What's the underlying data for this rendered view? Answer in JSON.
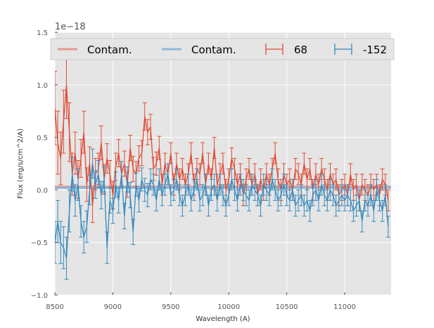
{
  "chart_data": {
    "type": "line",
    "xlabel": "Wavelength (A)",
    "ylabel": "Flux (erg/s/cm^2/A)",
    "y_offset_label": "1e−18",
    "xlim": [
      8500,
      11400
    ],
    "ylim": [
      -1.0,
      1.5
    ],
    "xticks": [
      8500,
      9000,
      9500,
      10000,
      10500,
      11000
    ],
    "xtick_labels": [
      "8500",
      "9000",
      "9500",
      "10000",
      "10500",
      "11000"
    ],
    "yticks": [
      -1.0,
      -0.5,
      0.0,
      0.5,
      1.0,
      1.5
    ],
    "ytick_labels": [
      "−1.0",
      "−0.5",
      "0.0",
      "0.5",
      "1.0",
      "1.5"
    ],
    "grid": true,
    "legend_location": "top",
    "colors": {
      "red": "#e24a33",
      "blue": "#348abd",
      "contam_red": "#e8968a",
      "contam_blue": "#8ab8dc",
      "background": "#e5e5e5"
    },
    "contamination": [
      {
        "name": "Contam.",
        "color": "#e8968a",
        "x": [
          8500,
          11400
        ],
        "y": [
          0.03,
          0.03
        ]
      },
      {
        "name": "Contam.",
        "color": "#8ab8dc",
        "x": [
          8500,
          11400
        ],
        "y": [
          0.02,
          0.02
        ]
      }
    ],
    "series": [
      {
        "name": "68",
        "color": "#e24a33",
        "x": [
          8500,
          8525,
          8550,
          8575,
          8600,
          8625,
          8650,
          8675,
          8700,
          8725,
          8750,
          8775,
          8800,
          8825,
          8850,
          8875,
          8900,
          8925,
          8950,
          8975,
          9000,
          9025,
          9050,
          9075,
          9100,
          9125,
          9150,
          9175,
          9200,
          9225,
          9250,
          9275,
          9300,
          9325,
          9350,
          9375,
          9400,
          9425,
          9450,
          9475,
          9500,
          9525,
          9550,
          9575,
          9600,
          9625,
          9650,
          9675,
          9700,
          9725,
          9750,
          9775,
          9800,
          9825,
          9850,
          9875,
          9900,
          9925,
          9950,
          9975,
          10000,
          10025,
          10050,
          10075,
          10100,
          10125,
          10150,
          10175,
          10200,
          10225,
          10250,
          10275,
          10300,
          10325,
          10350,
          10375,
          10400,
          10425,
          10450,
          10475,
          10500,
          10525,
          10550,
          10575,
          10600,
          10625,
          10650,
          10675,
          10700,
          10725,
          10750,
          10775,
          10800,
          10825,
          10850,
          10875,
          10900,
          10925,
          10950,
          10975,
          11000,
          11025,
          11050,
          11075,
          11100,
          11125,
          11150,
          11175,
          11200,
          11225,
          11250,
          11275,
          11300,
          11325,
          11350,
          11375
        ],
        "y": [
          0.78,
          0.45,
          0.3,
          0.65,
          1.0,
          0.55,
          0.15,
          0.35,
          0.1,
          0.3,
          0.55,
          0.05,
          0.25,
          -0.15,
          0.15,
          0.2,
          0.45,
          0.1,
          0.3,
          0.15,
          -0.05,
          0.22,
          0.35,
          0.15,
          0.25,
          0.05,
          0.4,
          0.2,
          0.15,
          0.3,
          0.35,
          0.7,
          0.55,
          0.6,
          0.2,
          0.25,
          0.4,
          0.05,
          0.25,
          0.15,
          0.35,
          0.05,
          0.25,
          0.1,
          0.2,
          0.05,
          0.15,
          0.35,
          0.05,
          0.2,
          0.15,
          0.35,
          0.05,
          0.25,
          0.1,
          0.4,
          0.05,
          0.15,
          0.25,
          0.0,
          0.1,
          0.3,
          0.2,
          0.05,
          0.15,
          -0.05,
          0.1,
          0.2,
          0.05,
          0.15,
          -0.05,
          0.1,
          0.0,
          0.15,
          0.05,
          0.2,
          0.35,
          0.1,
          0.0,
          0.15,
          0.05,
          0.1,
          0.0,
          0.2,
          0.15,
          0.05,
          0.25,
          0.1,
          0.2,
          0.0,
          0.15,
          0.05,
          0.2,
          0.1,
          0.0,
          0.15,
          0.05,
          0.1,
          -0.05,
          0.0,
          0.05,
          -0.05,
          0.15,
          0.0,
          0.05,
          -0.1,
          0.05,
          0.0,
          -0.05,
          0.05,
          0.0,
          0.05,
          -0.05,
          0.1,
          0.05,
          -0.1
        ],
        "yerr": [
          0.35,
          0.3,
          0.25,
          0.3,
          0.32,
          0.28,
          0.2,
          0.2,
          0.18,
          0.18,
          0.2,
          0.16,
          0.16,
          0.16,
          0.15,
          0.15,
          0.16,
          0.14,
          0.14,
          0.13,
          0.13,
          0.13,
          0.13,
          0.12,
          0.12,
          0.12,
          0.12,
          0.12,
          0.12,
          0.12,
          0.12,
          0.13,
          0.12,
          0.12,
          0.11,
          0.11,
          0.11,
          0.1,
          0.1,
          0.1,
          0.1,
          0.1,
          0.1,
          0.1,
          0.1,
          0.1,
          0.1,
          0.1,
          0.1,
          0.1,
          0.1,
          0.1,
          0.1,
          0.1,
          0.1,
          0.1,
          0.1,
          0.1,
          0.1,
          0.1,
          0.1,
          0.1,
          0.1,
          0.1,
          0.1,
          0.1,
          0.1,
          0.1,
          0.1,
          0.1,
          0.1,
          0.1,
          0.1,
          0.1,
          0.1,
          0.1,
          0.1,
          0.1,
          0.1,
          0.1,
          0.1,
          0.1,
          0.1,
          0.1,
          0.1,
          0.1,
          0.1,
          0.1,
          0.1,
          0.1,
          0.1,
          0.1,
          0.1,
          0.1,
          0.1,
          0.1,
          0.1,
          0.1,
          0.1,
          0.1,
          0.1,
          0.1,
          0.1,
          0.1,
          0.1,
          0.1,
          0.1,
          0.1,
          0.1,
          0.1,
          0.1,
          0.1,
          0.1,
          0.1,
          0.1,
          0.1
        ]
      },
      {
        "name": "-152",
        "color": "#348abd",
        "x": [
          8500,
          8525,
          8550,
          8575,
          8600,
          8625,
          8650,
          8675,
          8700,
          8725,
          8750,
          8775,
          8800,
          8825,
          8850,
          8875,
          8900,
          8925,
          8950,
          8975,
          9000,
          9025,
          9050,
          9075,
          9100,
          9125,
          9150,
          9175,
          9200,
          9225,
          9250,
          9275,
          9300,
          9325,
          9350,
          9375,
          9400,
          9425,
          9450,
          9475,
          9500,
          9525,
          9550,
          9575,
          9600,
          9625,
          9650,
          9675,
          9700,
          9725,
          9750,
          9775,
          9800,
          9825,
          9850,
          9875,
          9900,
          9925,
          9950,
          9975,
          10000,
          10025,
          10050,
          10075,
          10100,
          10125,
          10150,
          10175,
          10200,
          10225,
          10250,
          10275,
          10300,
          10325,
          10350,
          10375,
          10400,
          10425,
          10450,
          10475,
          10500,
          10525,
          10550,
          10575,
          10600,
          10625,
          10650,
          10675,
          10700,
          10725,
          10750,
          10775,
          10800,
          10825,
          10850,
          10875,
          10900,
          10925,
          10950,
          10975,
          11000,
          11025,
          11050,
          11075,
          11100,
          11125,
          11150,
          11175,
          11200,
          11225,
          11250,
          11275,
          11300,
          11325,
          11350,
          11375
        ],
        "y": [
          -0.5,
          -0.3,
          -0.5,
          -0.55,
          -0.65,
          -0.2,
          0.15,
          -0.1,
          0.05,
          -0.3,
          -0.45,
          -0.35,
          0.0,
          0.25,
          0.05,
          0.15,
          -0.05,
          0.1,
          -0.55,
          -0.1,
          -0.2,
          0.05,
          -0.1,
          0.15,
          -0.25,
          0.1,
          -0.05,
          -0.4,
          0.05,
          -0.1,
          0.1,
          0.0,
          -0.05,
          0.1,
          0.05,
          -0.1,
          0.1,
          -0.05,
          0.05,
          0.15,
          -0.05,
          0.0,
          0.1,
          -0.05,
          -0.15,
          -0.05,
          0.05,
          -0.1,
          0.0,
          0.1,
          -0.1,
          -0.05,
          0.05,
          -0.15,
          0.0,
          0.05,
          -0.1,
          0.05,
          -0.05,
          -0.15,
          -0.05,
          0.1,
          0.0,
          -0.1,
          0.05,
          0.0,
          -0.05,
          -0.1,
          0.05,
          0.0,
          -0.05,
          -0.15,
          0.05,
          0.0,
          -0.05,
          0.1,
          0.0,
          -0.1,
          -0.05,
          0.05,
          -0.05,
          -0.1,
          0.0,
          -0.15,
          -0.1,
          -0.05,
          -0.15,
          -0.1,
          -0.2,
          -0.05,
          0.0,
          -0.1,
          0.05,
          -0.05,
          -0.1,
          0.0,
          -0.05,
          -0.15,
          -0.1,
          -0.05,
          -0.1,
          -0.05,
          -0.1,
          -0.2,
          -0.15,
          -0.1,
          -0.3,
          -0.1,
          -0.15,
          -0.05,
          -0.2,
          0.0,
          -0.1,
          -0.2,
          -0.05,
          -0.35
        ],
        "yerr": [
          0.2,
          0.2,
          0.2,
          0.2,
          0.2,
          0.2,
          0.16,
          0.15,
          0.15,
          0.15,
          0.15,
          0.15,
          0.14,
          0.14,
          0.13,
          0.13,
          0.13,
          0.12,
          0.15,
          0.12,
          0.12,
          0.12,
          0.12,
          0.12,
          0.12,
          0.12,
          0.12,
          0.12,
          0.11,
          0.11,
          0.11,
          0.11,
          0.11,
          0.1,
          0.1,
          0.1,
          0.1,
          0.1,
          0.1,
          0.1,
          0.1,
          0.1,
          0.1,
          0.1,
          0.1,
          0.1,
          0.1,
          0.1,
          0.1,
          0.1,
          0.1,
          0.1,
          0.1,
          0.1,
          0.1,
          0.1,
          0.1,
          0.1,
          0.1,
          0.1,
          0.1,
          0.1,
          0.1,
          0.1,
          0.1,
          0.1,
          0.1,
          0.1,
          0.1,
          0.1,
          0.1,
          0.1,
          0.1,
          0.1,
          0.1,
          0.1,
          0.1,
          0.1,
          0.1,
          0.1,
          0.1,
          0.1,
          0.1,
          0.1,
          0.1,
          0.1,
          0.1,
          0.1,
          0.1,
          0.1,
          0.1,
          0.1,
          0.1,
          0.1,
          0.1,
          0.1,
          0.1,
          0.1,
          0.1,
          0.1,
          0.1,
          0.1,
          0.1,
          0.1,
          0.1,
          0.1,
          0.1,
          0.1,
          0.1,
          0.1,
          0.1,
          0.1,
          0.1,
          0.1,
          0.1,
          0.1
        ]
      }
    ],
    "legend": {
      "entries": [
        {
          "label": "Contam.",
          "kind": "line",
          "color": "#e8968a"
        },
        {
          "label": "Contam.",
          "kind": "line",
          "color": "#8ab8dc"
        },
        {
          "label": "68",
          "kind": "errorbar",
          "color": "#e24a33"
        },
        {
          "label": "-152",
          "kind": "errorbar",
          "color": "#348abd"
        }
      ]
    }
  }
}
